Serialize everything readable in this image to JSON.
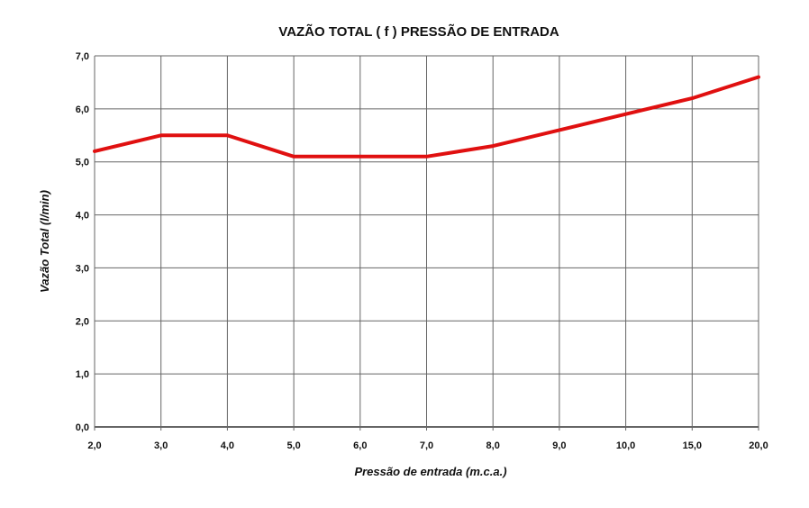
{
  "chart_data": {
    "type": "line",
    "title": "VAZÃO TOTAL ( f ) PRESSÃO DE ENTRADA",
    "xlabel": "Pressão de entrada (m.c.a.)",
    "ylabel": "Vazão Total (l/min)",
    "categories": [
      "2,0",
      "3,0",
      "4,0",
      "5,0",
      "6,0",
      "7,0",
      "8,0",
      "9,0",
      "10,0",
      "15,0",
      "20,0"
    ],
    "y_ticks": [
      "0,0",
      "1,0",
      "2,0",
      "3,0",
      "4,0",
      "5,0",
      "6,0",
      "7,0"
    ],
    "ylim": [
      0,
      7
    ],
    "grid": true,
    "series": [
      {
        "values": [
          5.2,
          5.5,
          5.5,
          5.1,
          5.1,
          5.1,
          5.3,
          5.6,
          5.9,
          6.2,
          6.6
        ],
        "color": "#e01010"
      }
    ]
  }
}
